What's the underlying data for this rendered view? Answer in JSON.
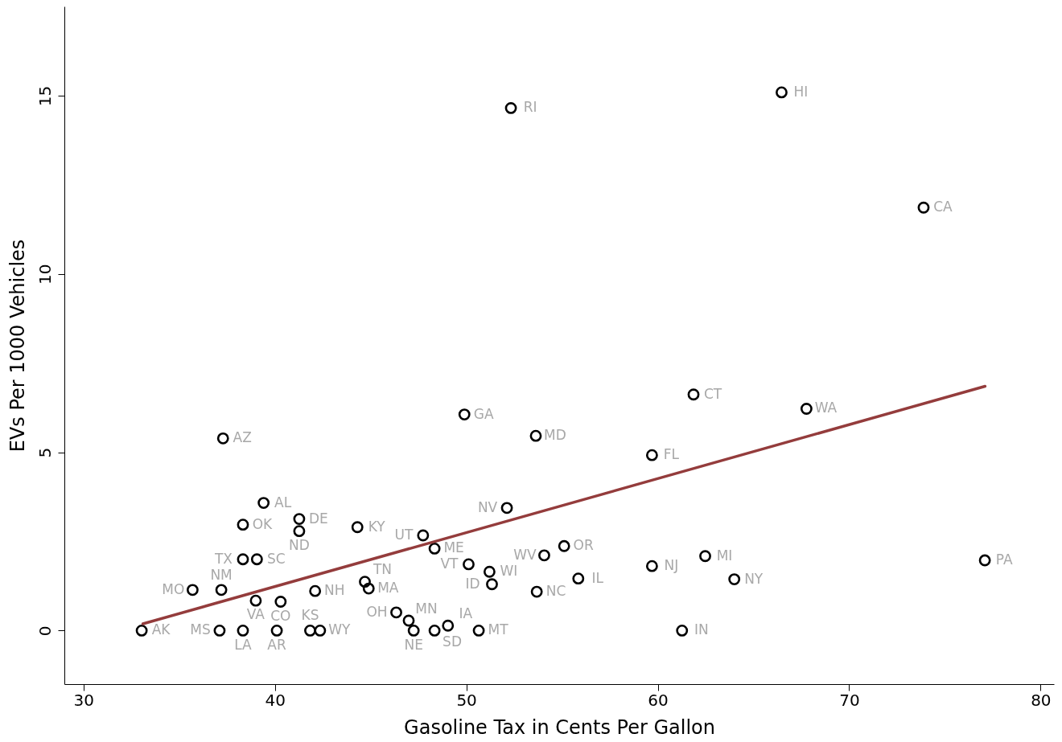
{
  "chart_data": {
    "type": "scatter",
    "xlabel": "Gasoline Tax in Cents Per Gallon",
    "ylabel": "EVs Per 1000 Vehicles",
    "xlim": [
      29,
      80.7
    ],
    "ylim": [
      -1.5,
      17.5
    ],
    "xticks": [
      30,
      40,
      50,
      60,
      70,
      80
    ],
    "yticks": [
      0,
      5,
      10,
      15
    ],
    "grid": false,
    "marker": "circle",
    "series": [
      {
        "color": "#000000",
        "x": [
          33.04,
          35.7,
          37.2,
          39.0,
          40.3,
          42.1,
          44.7,
          44.9,
          39.41,
          38.33,
          41.27,
          41.27,
          44.31,
          38.33,
          39.06,
          37.29,
          47.74,
          48.34,
          50.12,
          51.21,
          51.34,
          49.9,
          53.63,
          52.12,
          55.11,
          54.07,
          55.85,
          53.68,
          59.7,
          62.48,
          64.0,
          77.09,
          61.27,
          59.7,
          61.87,
          67.77,
          73.89,
          66.47,
          52.33,
          37.11,
          38.33,
          40.1,
          41.84,
          42.36,
          46.34,
          46.99,
          47.25,
          48.34,
          49.04,
          50.65
        ],
        "values": [
          0,
          1.14,
          1.14,
          0.84,
          0.81,
          1.11,
          1.37,
          1.18,
          3.58,
          2.97,
          3.13,
          2.79,
          2.9,
          2.0,
          2.0,
          5.39,
          2.67,
          2.3,
          1.86,
          1.65,
          1.3,
          6.06,
          5.46,
          3.44,
          2.37,
          2.11,
          1.46,
          1.09,
          1.81,
          2.09,
          1.44,
          1.97,
          0,
          4.92,
          6.62,
          6.22,
          11.86,
          15.09,
          14.65,
          0,
          0,
          0,
          0,
          0,
          0.51,
          0.28,
          0,
          0,
          0.14,
          0
        ],
        "value_labels": [
          "AK",
          "MO",
          "NM",
          "VA",
          "CO",
          "NH",
          "TN",
          "MA",
          "AL",
          "OK",
          "DE",
          "ND",
          "KY",
          "TX",
          "SC",
          "AZ",
          "UT",
          "ME",
          "VT",
          "WI",
          "ID",
          "GA",
          "MD",
          "NV",
          "OR",
          "WV",
          "IL",
          "NC",
          "NJ",
          "MI",
          "NY",
          "PA",
          "IN",
          "FL",
          "CT",
          "WA",
          "CA",
          "HI",
          "RI",
          "MS",
          "LA",
          "AR",
          "KS",
          "WY",
          "OH",
          "MN",
          "NE",
          "SD",
          "IA",
          "MT"
        ]
      },
      {
        "type": "line",
        "color": "#943c3c",
        "marker": "none",
        "line_style": "solid",
        "x": [
          33.1,
          77.1
        ],
        "values": [
          0.19,
          6.85
        ]
      }
    ]
  }
}
